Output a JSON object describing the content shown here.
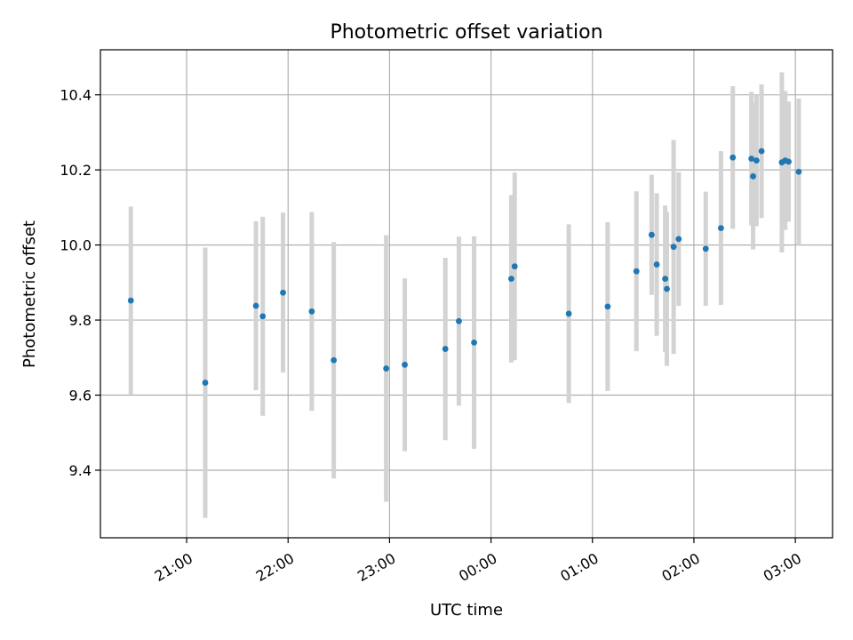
{
  "chart_data": {
    "type": "scatter",
    "title": "Photometric offset variation",
    "xlabel": "UTC time",
    "ylabel": "Photometric offset",
    "grid": true,
    "x_tick_labels": [
      "21:00",
      "22:00",
      "23:00",
      "00:00",
      "01:00",
      "02:00",
      "03:00"
    ],
    "y_tick_labels": [
      "9.4",
      "9.6",
      "9.8",
      "10.0",
      "10.2",
      "10.4"
    ],
    "y_ticks": [
      9.4,
      9.6,
      9.8,
      10.0,
      10.2,
      10.4
    ],
    "xlim": [
      "20:09",
      "03:22"
    ],
    "ylim": [
      9.22,
      10.52
    ],
    "colors": {
      "point": "#1f77b4",
      "error_bar": "#d3d3d3",
      "grid": "#b0b0b0"
    },
    "points": [
      {
        "x": "20:27",
        "y": 9.852,
        "err": 0.25
      },
      {
        "x": "21:11",
        "y": 9.633,
        "err": 0.36
      },
      {
        "x": "21:41",
        "y": 9.838,
        "err": 0.225
      },
      {
        "x": "21:45",
        "y": 9.81,
        "err": 0.265
      },
      {
        "x": "21:57",
        "y": 9.873,
        "err": 0.213
      },
      {
        "x": "22:14",
        "y": 9.823,
        "err": 0.265
      },
      {
        "x": "22:27",
        "y": 9.693,
        "err": 0.315
      },
      {
        "x": "22:58",
        "y": 9.671,
        "err": 0.355
      },
      {
        "x": "23:09",
        "y": 9.681,
        "err": 0.23
      },
      {
        "x": "23:33",
        "y": 9.723,
        "err": 0.243
      },
      {
        "x": "23:41",
        "y": 9.797,
        "err": 0.225
      },
      {
        "x": "23:50",
        "y": 9.74,
        "err": 0.283
      },
      {
        "x": "00:12",
        "y": 9.91,
        "err": 0.223
      },
      {
        "x": "00:14",
        "y": 9.943,
        "err": 0.25
      },
      {
        "x": "00:46",
        "y": 9.817,
        "err": 0.238
      },
      {
        "x": "01:09",
        "y": 9.836,
        "err": 0.225
      },
      {
        "x": "01:26",
        "y": 9.93,
        "err": 0.213
      },
      {
        "x": "01:35",
        "y": 10.027,
        "err": 0.16
      },
      {
        "x": "01:38",
        "y": 9.948,
        "err": 0.19
      },
      {
        "x": "01:43",
        "y": 9.91,
        "err": 0.195
      },
      {
        "x": "01:44",
        "y": 9.883,
        "err": 0.205
      },
      {
        "x": "01:48",
        "y": 9.995,
        "err": 0.285
      },
      {
        "x": "01:51",
        "y": 10.016,
        "err": 0.178
      },
      {
        "x": "02:07",
        "y": 9.99,
        "err": 0.152
      },
      {
        "x": "02:16",
        "y": 10.045,
        "err": 0.205
      },
      {
        "x": "02:23",
        "y": 10.233,
        "err": 0.19
      },
      {
        "x": "02:34",
        "y": 10.23,
        "err": 0.178
      },
      {
        "x": "02:35",
        "y": 10.183,
        "err": 0.195
      },
      {
        "x": "02:37",
        "y": 10.225,
        "err": 0.175
      },
      {
        "x": "02:40",
        "y": 10.25,
        "err": 0.178
      },
      {
        "x": "02:52",
        "y": 10.22,
        "err": 0.24
      },
      {
        "x": "02:54",
        "y": 10.225,
        "err": 0.185
      },
      {
        "x": "02:56",
        "y": 10.222,
        "err": 0.16
      },
      {
        "x": "03:02",
        "y": 10.195,
        "err": 0.195
      }
    ]
  }
}
